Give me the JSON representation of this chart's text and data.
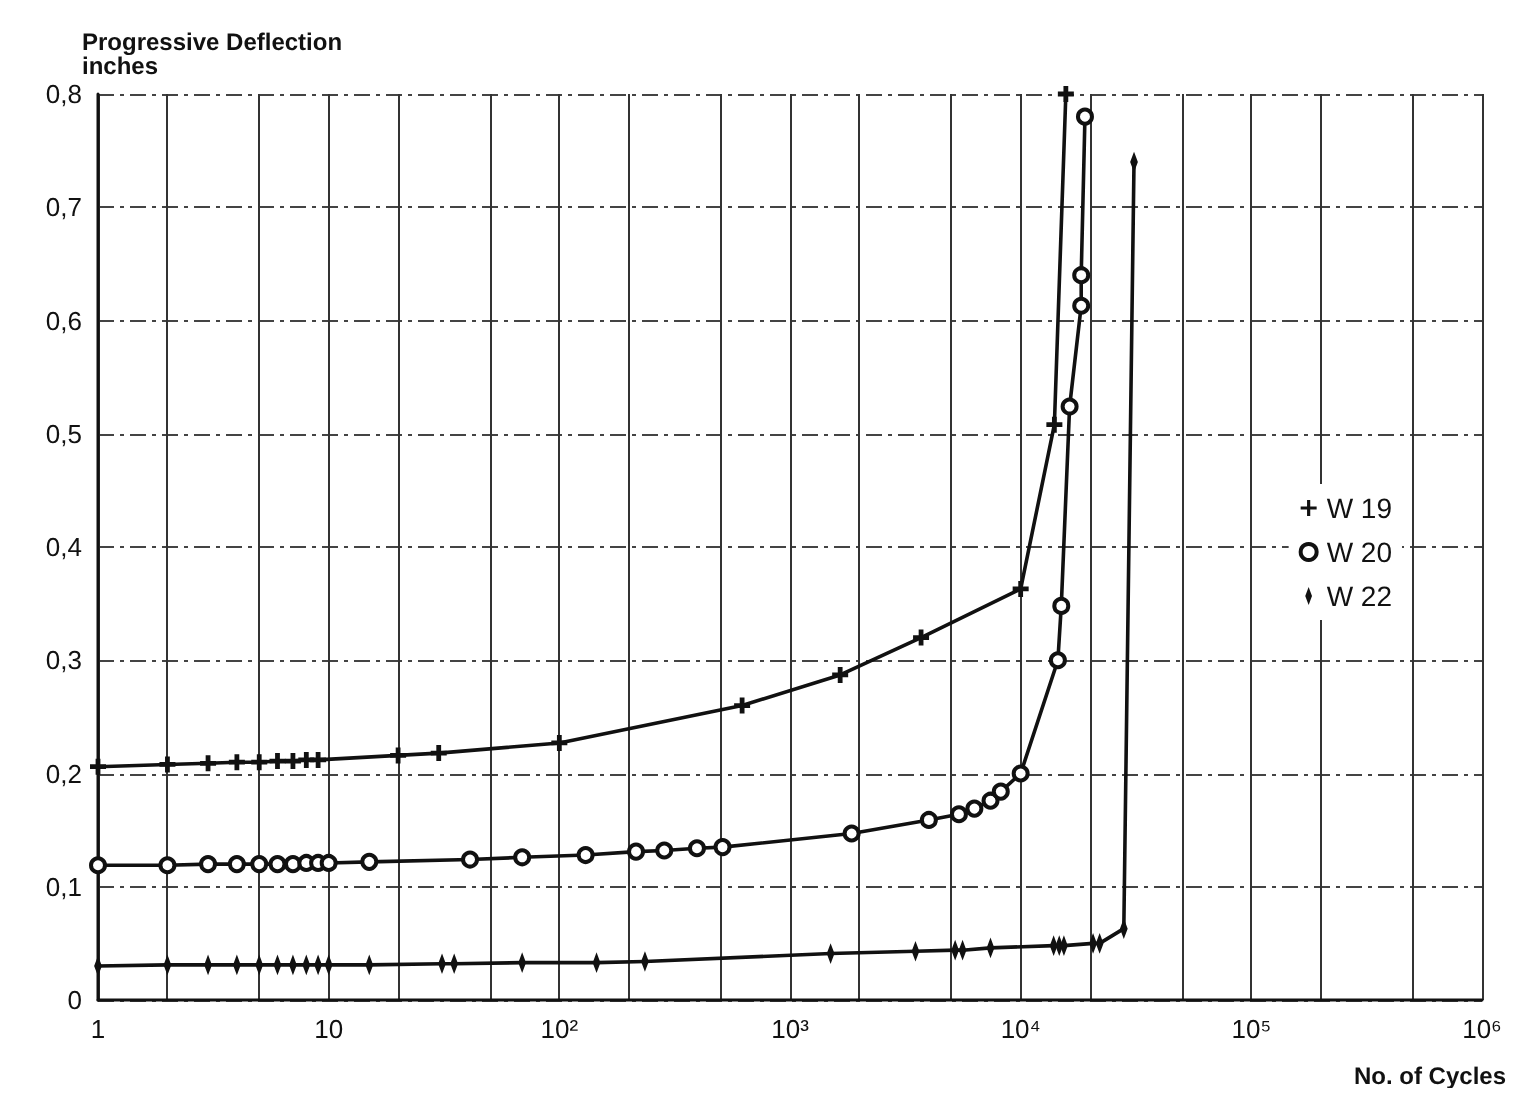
{
  "chart_data": {
    "type": "line",
    "xlabel": "No. of Cycles",
    "ylabel": "Progressive Deflection\ninches",
    "log": "x",
    "grid": true,
    "legend": "right",
    "line_style": "solid",
    "xlim": [
      1,
      1000000
    ],
    "xticks": [
      {
        "value": 1,
        "label": "1"
      },
      {
        "value": 2,
        "label": null
      },
      {
        "value": 5,
        "label": null
      },
      {
        "value": 10,
        "label": "10"
      },
      {
        "value": 20,
        "label": null
      },
      {
        "value": 50,
        "label": null
      },
      {
        "value": 100,
        "label": "10²"
      },
      {
        "value": 200,
        "label": null
      },
      {
        "value": 500,
        "label": null
      },
      {
        "value": 1000,
        "label": "10³"
      },
      {
        "value": 2000,
        "label": null
      },
      {
        "value": 5000,
        "label": null
      },
      {
        "value": 10000,
        "label": "10⁴"
      },
      {
        "value": 20000,
        "label": null
      },
      {
        "value": 50000,
        "label": null
      },
      {
        "value": 100000,
        "label": "10⁵"
      },
      {
        "value": 200000,
        "label": null
      },
      {
        "value": 500000,
        "label": null
      },
      {
        "value": 1000000,
        "label": "10⁶"
      }
    ],
    "ylim": [
      0,
      0.8
    ],
    "yticks": [
      {
        "value": 0,
        "label": "0"
      },
      {
        "value": 0.1,
        "label": "0,1"
      },
      {
        "value": 0.2,
        "label": "0,2"
      },
      {
        "value": 0.3,
        "label": "0,3"
      },
      {
        "value": 0.4,
        "label": "0,4"
      },
      {
        "value": 0.5,
        "label": "0,5"
      },
      {
        "value": 0.6,
        "label": "0,6"
      },
      {
        "value": 0.7,
        "label": "0,7"
      },
      {
        "value": 0.8,
        "label": "0,8"
      }
    ],
    "series": [
      {
        "name": "W 19",
        "color": "#111111",
        "marker": "cross",
        "x": [
          1,
          2,
          3,
          4,
          5,
          6,
          7,
          8,
          9,
          20,
          30,
          100,
          620,
          1650,
          3700,
          10000,
          14000,
          15700
        ],
        "values": [
          0.206,
          0.208,
          0.209,
          0.21,
          0.21,
          0.211,
          0.211,
          0.212,
          0.212,
          0.216,
          0.218,
          0.227,
          0.26,
          0.287,
          0.32,
          0.363,
          0.508,
          0.8
        ]
      },
      {
        "name": "W 20",
        "color": "#111111",
        "marker": "circle",
        "x": [
          1,
          2,
          3,
          4,
          5,
          6,
          7,
          8,
          9,
          10,
          15,
          41,
          69,
          130,
          215,
          285,
          395,
          510,
          1850,
          4000,
          5400,
          6300,
          7400,
          8200,
          10000,
          14500,
          15000,
          16300,
          18300,
          18300,
          19000
        ],
        "values": [
          0.119,
          0.119,
          0.12,
          0.12,
          0.12,
          0.12,
          0.12,
          0.121,
          0.121,
          0.121,
          0.122,
          0.124,
          0.126,
          0.128,
          0.131,
          0.132,
          0.134,
          0.135,
          0.147,
          0.159,
          0.164,
          0.169,
          0.176,
          0.184,
          0.2,
          0.3,
          0.348,
          0.524,
          0.613,
          0.64,
          0.78
        ]
      },
      {
        "name": "W 22",
        "color": "#111111",
        "marker": "diamond",
        "x": [
          1,
          2,
          3,
          4,
          5,
          6,
          7,
          8,
          9,
          10,
          15,
          31,
          35,
          69,
          145,
          235,
          1500,
          3500,
          5200,
          5600,
          7400,
          13900,
          14700,
          15400,
          20600,
          22000,
          28000,
          31000
        ],
        "values": [
          0.03,
          0.031,
          0.031,
          0.031,
          0.031,
          0.031,
          0.031,
          0.031,
          0.031,
          0.031,
          0.031,
          0.032,
          0.032,
          0.033,
          0.033,
          0.034,
          0.041,
          0.043,
          0.044,
          0.044,
          0.046,
          0.048,
          0.048,
          0.048,
          0.05,
          0.05,
          0.063,
          0.74
        ]
      }
    ]
  }
}
